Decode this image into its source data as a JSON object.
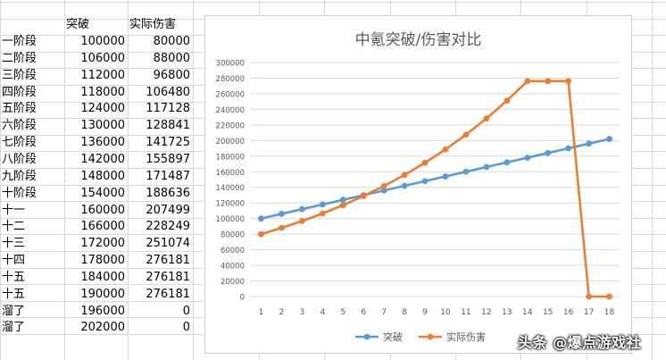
{
  "spreadsheet": {
    "headers": [
      "",
      "突破",
      "实际伤害"
    ],
    "rows": [
      [
        "一阶段",
        "100000",
        "80000"
      ],
      [
        "二阶段",
        "106000",
        "88000"
      ],
      [
        "三阶段",
        "112000",
        "96800"
      ],
      [
        "四阶段",
        "118000",
        "106480"
      ],
      [
        "五阶段",
        "124000",
        "117128"
      ],
      [
        "六阶段",
        "130000",
        "128841"
      ],
      [
        "七阶段",
        "136000",
        "141725"
      ],
      [
        "八阶段",
        "142000",
        "155897"
      ],
      [
        "九阶段",
        "148000",
        "171487"
      ],
      [
        "十阶段",
        "154000",
        "188636"
      ],
      [
        "十一",
        "160000",
        "207499"
      ],
      [
        "十二",
        "166000",
        "228249"
      ],
      [
        "十三",
        "172000",
        "251074"
      ],
      [
        "十四",
        "178000",
        "276181"
      ],
      [
        "十五",
        "184000",
        "276181"
      ],
      [
        "十五",
        "190000",
        "276181"
      ],
      [
        "溜了",
        "196000",
        "0"
      ],
      [
        "溜了",
        "202000",
        "0"
      ]
    ]
  },
  "chart_data": {
    "type": "line",
    "title": "中氪突破/伤害对比",
    "x": [
      1,
      2,
      3,
      4,
      5,
      6,
      7,
      8,
      9,
      10,
      11,
      12,
      13,
      14,
      15,
      16,
      17,
      18
    ],
    "ylim": [
      0,
      300000
    ],
    "yticks": [
      0,
      20000,
      40000,
      60000,
      80000,
      100000,
      120000,
      140000,
      160000,
      180000,
      200000,
      220000,
      240000,
      260000,
      280000,
      300000
    ],
    "grid": true,
    "legend_position": "bottom",
    "series": [
      {
        "name": "突破",
        "color": "#5b9bd5",
        "values": [
          100000,
          106000,
          112000,
          118000,
          124000,
          130000,
          136000,
          142000,
          148000,
          154000,
          160000,
          166000,
          172000,
          178000,
          184000,
          190000,
          196000,
          202000
        ]
      },
      {
        "name": "实际伤害",
        "color": "#ed7d31",
        "values": [
          80000,
          88000,
          96800,
          106480,
          117128,
          128841,
          141725,
          155897,
          171487,
          188636,
          207499,
          228249,
          251074,
          276181,
          276181,
          276181,
          0,
          0
        ]
      }
    ]
  },
  "watermark": "头条 @爆点游戏社"
}
